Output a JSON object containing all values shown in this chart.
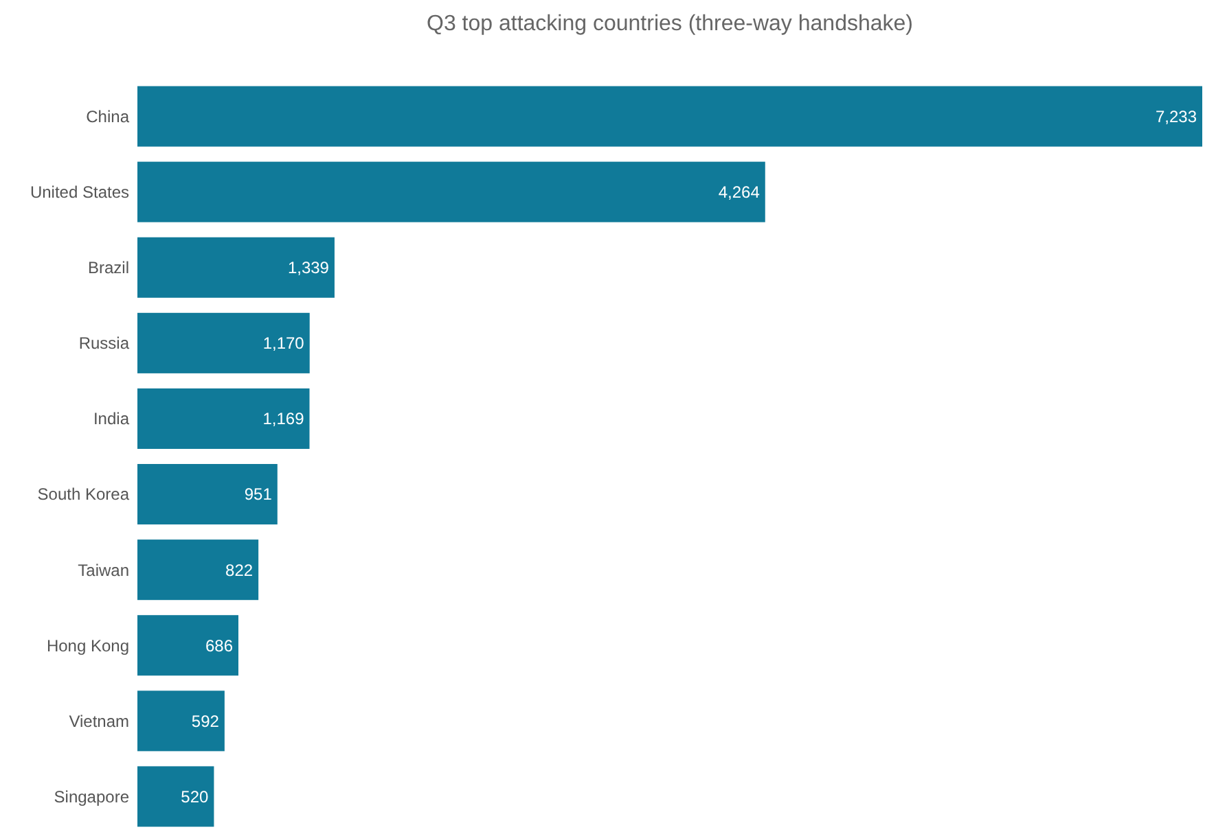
{
  "chart_data": {
    "type": "bar",
    "orientation": "horizontal",
    "title": "Q3 top attacking countries (three-way handshake)",
    "categories": [
      "China",
      "United States",
      "Brazil",
      "Russia",
      "India",
      "South Korea",
      "Taiwan",
      "Hong Kong",
      "Vietnam",
      "Singapore"
    ],
    "values": [
      7233,
      4264,
      1339,
      1170,
      1169,
      951,
      822,
      686,
      592,
      520
    ],
    "value_labels": [
      "7,233",
      "4,264",
      "1,339",
      "1,170",
      "1,169",
      "951",
      "822",
      "686",
      "592",
      "520"
    ],
    "color": "#107a99"
  }
}
